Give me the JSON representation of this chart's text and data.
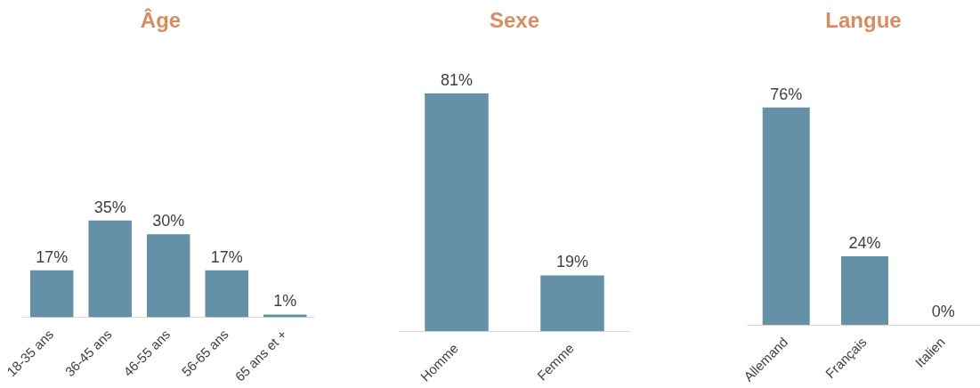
{
  "chart_data": [
    {
      "type": "bar",
      "title": "Âge",
      "categories": [
        "18-35 ans",
        "36-45 ans",
        "46-55 ans",
        "56-65 ans",
        "65 ans et +"
      ],
      "values": [
        17,
        35,
        30,
        17,
        1
      ],
      "value_labels": [
        "17%",
        "35%",
        "30%",
        "17%",
        "1%"
      ],
      "color": "#6490a8"
    },
    {
      "type": "bar",
      "title": "Sexe",
      "categories": [
        "Homme",
        "Femme"
      ],
      "values": [
        81,
        19
      ],
      "value_labels": [
        "81%",
        "19%"
      ],
      "color": "#6490a8"
    },
    {
      "type": "bar",
      "title": "Langue",
      "categories": [
        "Allemand",
        "Français",
        "Italien"
      ],
      "values": [
        76,
        24,
        0
      ],
      "value_labels": [
        "76%",
        "24%",
        "0%"
      ],
      "color": "#6490a8"
    }
  ]
}
